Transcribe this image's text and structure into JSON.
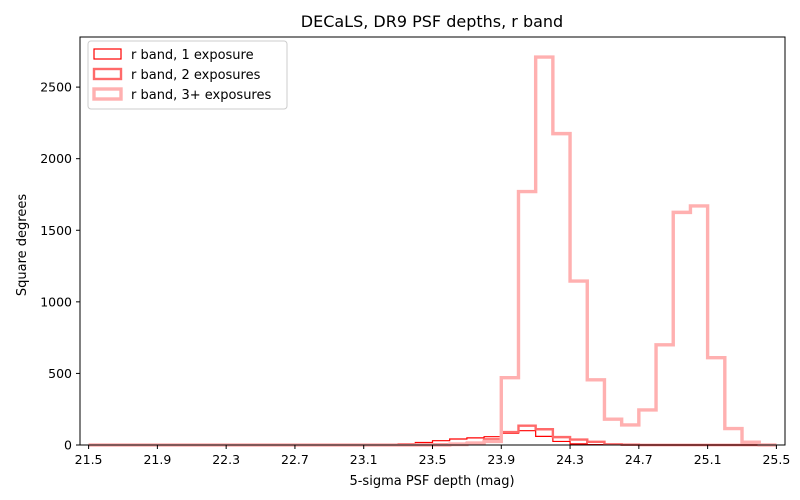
{
  "chart_data": {
    "type": "histogram-step",
    "title": "DECaLS, DR9 PSF depths, r band",
    "xlabel": "5-sigma PSF depth (mag)",
    "ylabel": "Square degrees",
    "xlim": [
      21.45,
      25.55
    ],
    "ylim": [
      0,
      2850
    ],
    "xticks": [
      "21.5",
      "21.9",
      "22.3",
      "22.7",
      "23.1",
      "23.5",
      "23.9",
      "24.3",
      "24.7",
      "25.1",
      "25.5"
    ],
    "yticks": [
      "0",
      "500",
      "1000",
      "1500",
      "2000",
      "2500"
    ],
    "grid": false,
    "legend_position": "top-left",
    "bin_edges": [
      21.5,
      21.6,
      21.7,
      21.8,
      21.9,
      22.0,
      22.1,
      22.2,
      22.3,
      22.4,
      22.5,
      22.6,
      22.7,
      22.8,
      22.9,
      23.0,
      23.1,
      23.2,
      23.3,
      23.4,
      23.5,
      23.6,
      23.7,
      23.8,
      23.9,
      24.0,
      24.1,
      24.2,
      24.3,
      24.4,
      24.5,
      24.6,
      24.7,
      24.8,
      24.9,
      25.0,
      25.1,
      25.2,
      25.3,
      25.4,
      25.5
    ],
    "series": [
      {
        "name": "r band, 1 exposure",
        "color": "#ff0000",
        "values": [
          0,
          0,
          0,
          0,
          0,
          0,
          0,
          0,
          0,
          0,
          0,
          0,
          0,
          0,
          0,
          2,
          3,
          5,
          10,
          18,
          30,
          42,
          50,
          58,
          82,
          100,
          60,
          25,
          8,
          3,
          1,
          0,
          0,
          0,
          0,
          0,
          0,
          0,
          0,
          0
        ]
      },
      {
        "name": "r band, 2 exposures",
        "color": "#ff6a6a",
        "values": [
          0,
          0,
          0,
          0,
          0,
          0,
          0,
          0,
          0,
          0,
          0,
          0,
          0,
          0,
          0,
          0,
          0,
          0,
          2,
          4,
          6,
          8,
          15,
          40,
          90,
          135,
          110,
          55,
          38,
          22,
          5,
          2,
          0,
          0,
          0,
          0,
          0,
          0,
          0,
          0
        ]
      },
      {
        "name": "r band, 3+ exposures",
        "color": "#ffb0b0",
        "values": [
          0,
          0,
          0,
          0,
          0,
          0,
          0,
          0,
          0,
          0,
          0,
          0,
          0,
          0,
          0,
          0,
          0,
          0,
          0,
          0,
          0,
          3,
          10,
          25,
          470,
          1770,
          2710,
          2175,
          1145,
          455,
          180,
          140,
          245,
          700,
          1625,
          1670,
          610,
          115,
          20,
          0
        ]
      }
    ]
  }
}
